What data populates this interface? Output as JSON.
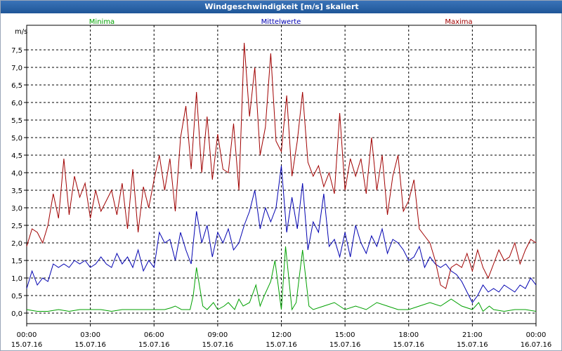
{
  "window": {
    "title": "Windgeschwindigkeit [m/s] skaliert"
  },
  "chart_data": {
    "type": "line",
    "ylabel": "m/s",
    "ylim": [
      -0.3,
      8.2
    ],
    "yticks": [
      "0,0",
      "0,5",
      "1,0",
      "1,5",
      "2,0",
      "2,5",
      "3,0",
      "3,5",
      "4,0",
      "4,5",
      "5,0",
      "5,5",
      "6,0",
      "6,5",
      "7,0",
      "7,5"
    ],
    "xlim": [
      0,
      24
    ],
    "xticks": [
      {
        "time": "00:00",
        "date": "15.07.16"
      },
      {
        "time": "03:00",
        "date": "15.07.16"
      },
      {
        "time": "06:00",
        "date": "15.07.16"
      },
      {
        "time": "09:00",
        "date": "15.07.16"
      },
      {
        "time": "12:00",
        "date": "15.07.16"
      },
      {
        "time": "15:00",
        "date": "15.07.16"
      },
      {
        "time": "18:00",
        "date": "15.07.16"
      },
      {
        "time": "21:00",
        "date": "15.07.16"
      },
      {
        "time": "00:00",
        "date": "16.07.16"
      }
    ],
    "grid": true,
    "series": [
      {
        "name": "Minima",
        "color": "#00a000",
        "x": [
          0,
          0.5,
          1,
          1.5,
          2,
          2.5,
          3,
          3.5,
          4,
          4.5,
          5,
          5.5,
          6,
          6.5,
          6.8,
          7,
          7.3,
          7.5,
          7.7,
          7.85,
          8,
          8.3,
          8.5,
          8.8,
          9,
          9.3,
          9.5,
          9.8,
          10,
          10.2,
          10.5,
          10.8,
          11,
          11.2,
          11.5,
          11.7,
          12,
          12.2,
          12.5,
          12.7,
          13,
          13.3,
          13.5,
          14,
          14.5,
          15,
          15.5,
          16,
          16.5,
          17,
          17.5,
          18,
          18.5,
          19,
          19.5,
          20,
          20.5,
          21,
          21.3,
          21.5,
          21.8,
          22,
          22.5,
          23,
          23.5,
          24
        ],
        "y": [
          0.1,
          0.05,
          0.05,
          0.1,
          0.05,
          0.1,
          0.1,
          0.1,
          0.05,
          0.1,
          0.1,
          0.1,
          0.1,
          0.1,
          0.15,
          0.2,
          0.1,
          0.1,
          0.1,
          0.5,
          1.3,
          0.2,
          0.1,
          0.3,
          0.1,
          0.2,
          0.3,
          0.1,
          0.4,
          0.2,
          0.3,
          0.8,
          0.2,
          0.5,
          0.9,
          1.5,
          0.1,
          1.9,
          0.1,
          0.3,
          1.8,
          0.2,
          0.1,
          0.2,
          0.3,
          0.1,
          0.2,
          0.1,
          0.3,
          0.2,
          0.1,
          0.1,
          0.2,
          0.3,
          0.2,
          0.4,
          0.2,
          0.1,
          0.3,
          0.05,
          0.2,
          0.1,
          0.05,
          0.1,
          0.1,
          0.05
        ]
      },
      {
        "name": "Mittelwerte",
        "color": "#0000b0",
        "x": [
          0,
          0.25,
          0.5,
          0.75,
          1,
          1.25,
          1.5,
          1.75,
          2,
          2.25,
          2.5,
          2.75,
          3,
          3.25,
          3.5,
          3.75,
          4,
          4.25,
          4.5,
          4.75,
          5,
          5.25,
          5.5,
          5.75,
          6,
          6.25,
          6.5,
          6.75,
          7,
          7.25,
          7.5,
          7.75,
          8,
          8.25,
          8.5,
          8.75,
          9,
          9.25,
          9.5,
          9.75,
          10,
          10.25,
          10.5,
          10.75,
          11,
          11.25,
          11.5,
          11.75,
          12,
          12.25,
          12.5,
          12.75,
          13,
          13.25,
          13.5,
          13.75,
          14,
          14.25,
          14.5,
          14.75,
          15,
          15.25,
          15.5,
          15.75,
          16,
          16.25,
          16.5,
          16.75,
          17,
          17.25,
          17.5,
          17.75,
          18,
          18.25,
          18.5,
          18.75,
          19,
          19.25,
          19.5,
          19.75,
          20,
          20.25,
          20.5,
          20.75,
          21,
          21.25,
          21.5,
          21.75,
          22,
          22.25,
          22.5,
          22.75,
          23,
          23.25,
          23.5,
          23.75,
          24
        ],
        "y": [
          0.7,
          1.2,
          0.8,
          1.0,
          0.9,
          1.4,
          1.3,
          1.4,
          1.3,
          1.5,
          1.4,
          1.5,
          1.3,
          1.4,
          1.6,
          1.4,
          1.3,
          1.7,
          1.4,
          1.6,
          1.3,
          1.8,
          1.2,
          1.5,
          1.3,
          2.3,
          2.0,
          2.1,
          1.5,
          2.3,
          1.8,
          1.4,
          2.9,
          2.0,
          2.5,
          1.6,
          2.3,
          2.0,
          2.4,
          1.8,
          2.0,
          2.5,
          2.9,
          3.5,
          2.4,
          3.0,
          2.6,
          3.0,
          4.2,
          2.3,
          3.3,
          2.4,
          3.7,
          1.8,
          2.6,
          2.3,
          3.4,
          1.9,
          2.1,
          1.6,
          2.3,
          1.6,
          2.5,
          2.0,
          1.7,
          2.2,
          1.9,
          2.4,
          1.7,
          2.1,
          2.0,
          1.8,
          1.5,
          1.6,
          1.9,
          1.3,
          1.6,
          1.4,
          1.3,
          1.4,
          1.2,
          1.1,
          0.9,
          0.6,
          0.3,
          0.5,
          0.8,
          0.6,
          0.7,
          0.6,
          0.8,
          0.7,
          0.6,
          0.8,
          0.7,
          1.0,
          0.8
        ]
      },
      {
        "name": "Maxima",
        "color": "#a00000",
        "x": [
          0,
          0.25,
          0.5,
          0.75,
          1,
          1.25,
          1.5,
          1.75,
          2,
          2.25,
          2.5,
          2.75,
          3,
          3.25,
          3.5,
          3.75,
          4,
          4.25,
          4.5,
          4.75,
          5,
          5.25,
          5.5,
          5.75,
          6,
          6.25,
          6.5,
          6.75,
          7,
          7.25,
          7.5,
          7.75,
          8,
          8.25,
          8.5,
          8.75,
          9,
          9.25,
          9.5,
          9.75,
          10,
          10.25,
          10.5,
          10.75,
          11,
          11.25,
          11.5,
          11.75,
          12,
          12.25,
          12.5,
          12.75,
          13,
          13.25,
          13.5,
          13.75,
          14,
          14.25,
          14.5,
          14.75,
          15,
          15.25,
          15.5,
          15.75,
          16,
          16.25,
          16.5,
          16.75,
          17,
          17.25,
          17.5,
          17.75,
          18,
          18.25,
          18.5,
          18.75,
          19,
          19.25,
          19.5,
          19.75,
          20,
          20.25,
          20.5,
          20.75,
          21,
          21.25,
          21.5,
          21.75,
          22,
          22.25,
          22.5,
          22.75,
          23,
          23.25,
          23.5,
          23.75,
          24
        ],
        "y": [
          1.9,
          2.4,
          2.3,
          2.0,
          2.5,
          3.4,
          2.7,
          4.4,
          2.8,
          3.9,
          3.3,
          3.7,
          2.7,
          3.5,
          2.9,
          3.2,
          3.5,
          2.8,
          3.7,
          2.4,
          4.1,
          2.3,
          3.6,
          3.0,
          3.8,
          4.5,
          3.5,
          4.4,
          2.9,
          5.0,
          5.9,
          4.1,
          6.3,
          4.0,
          5.6,
          3.8,
          5.1,
          4.1,
          4.0,
          5.4,
          3.5,
          7.7,
          5.6,
          7.0,
          4.5,
          5.3,
          7.4,
          4.9,
          4.6,
          6.2,
          3.9,
          4.9,
          6.3,
          4.3,
          3.9,
          4.2,
          3.6,
          4.0,
          3.4,
          5.7,
          3.5,
          4.4,
          3.9,
          4.4,
          3.4,
          5.0,
          3.5,
          4.5,
          2.8,
          3.9,
          4.5,
          2.9,
          3.2,
          3.8,
          2.4,
          2.2,
          2.0,
          1.5,
          0.8,
          0.7,
          1.3,
          1.4,
          1.3,
          1.7,
          1.2,
          1.8,
          1.3,
          1.0,
          1.4,
          1.8,
          1.5,
          1.6,
          2.0,
          1.4,
          1.8,
          2.1,
          2.0
        ]
      }
    ]
  }
}
